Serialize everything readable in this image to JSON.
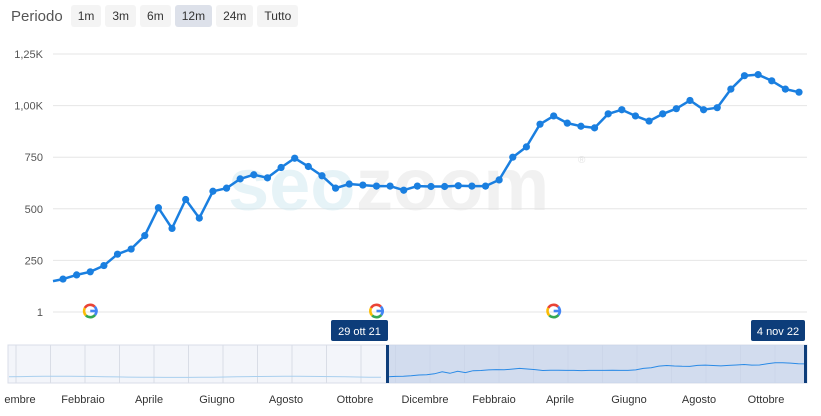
{
  "toolbar": {
    "label": "Periodo",
    "buttons": [
      "1m",
      "3m",
      "6m",
      "12m",
      "24m",
      "Tutto"
    ],
    "active": "12m"
  },
  "watermark": {
    "part1": "seo",
    "part2": "zoom",
    "mark": "®"
  },
  "navigator": {
    "start_label": "29 ott 21",
    "end_label": "4 nov 22",
    "months": [
      "embre",
      "Febbraio",
      "Aprile",
      "Giugno",
      "Agosto",
      "Ottobre",
      "Dicembre",
      "Febbraio",
      "Aprile",
      "Giugno",
      "Agosto",
      "Ottobre"
    ]
  },
  "colors": {
    "line": "#1a7fe0",
    "grid": "#e6e6e6",
    "flag": "#0d3d7a",
    "navigator_fill": "#c7d3ea"
  },
  "icons": {
    "event_marker": "google-g-icon"
  },
  "chart_data": {
    "type": "line",
    "yticks": [
      "1",
      "250",
      "500",
      "750",
      "1,00K",
      "1,25K"
    ],
    "ytick_values": [
      1,
      250,
      500,
      750,
      1000,
      1250
    ],
    "ylim": [
      1,
      1250
    ],
    "series": [
      {
        "values": [
          160,
          180,
          195,
          225,
          280,
          305,
          370,
          505,
          405,
          545,
          455,
          585,
          600,
          645,
          665,
          650,
          700,
          745,
          705,
          660,
          600,
          620,
          615,
          610,
          610,
          590,
          610,
          608,
          608,
          612,
          610,
          610,
          640,
          750,
          800,
          910,
          950,
          915,
          900,
          892,
          960,
          980,
          950,
          925,
          960,
          985,
          1025,
          980,
          990,
          1080,
          1145,
          1150,
          1120,
          1080,
          1065
        ]
      }
    ],
    "event_marker_x_index": [
      2,
      23,
      36
    ]
  }
}
